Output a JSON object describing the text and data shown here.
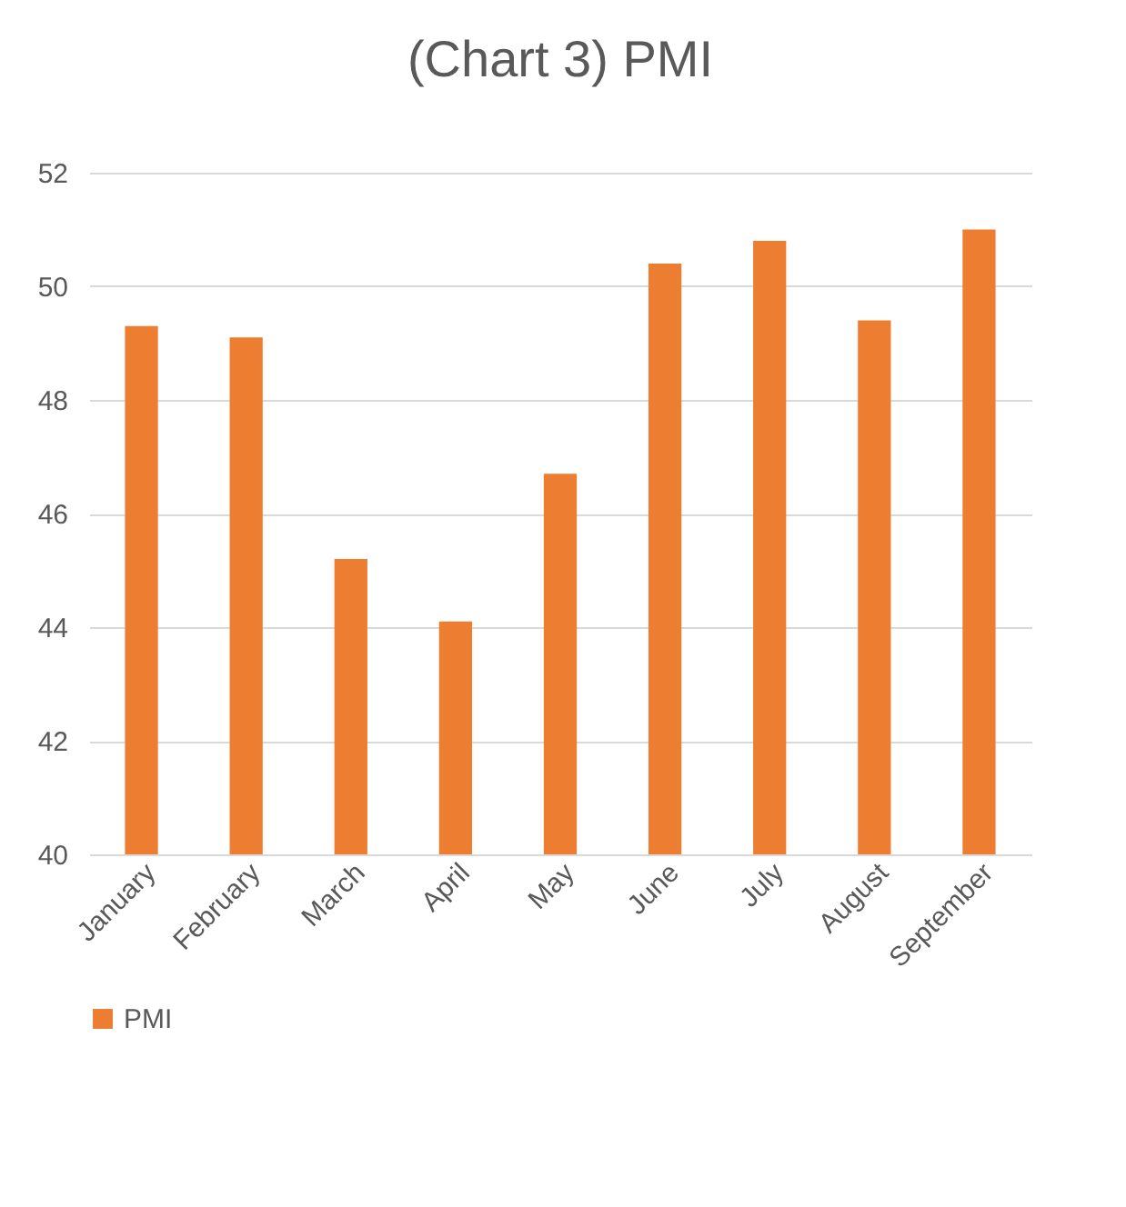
{
  "chart_data": {
    "type": "bar",
    "title": "(Chart 3) PMI",
    "categories": [
      "January",
      "February",
      "March",
      "April",
      "May",
      "June",
      "July",
      "August",
      "September"
    ],
    "series": [
      {
        "name": "PMI",
        "color": "#ed7d31",
        "values": [
          49.3,
          49.1,
          45.2,
          44.1,
          46.7,
          50.4,
          50.8,
          49.4,
          51.0
        ]
      }
    ],
    "ylim": [
      40,
      52
    ],
    "yticks": [
      40,
      42,
      44,
      46,
      48,
      50,
      52
    ],
    "grid": "y",
    "legend": "bottom"
  }
}
